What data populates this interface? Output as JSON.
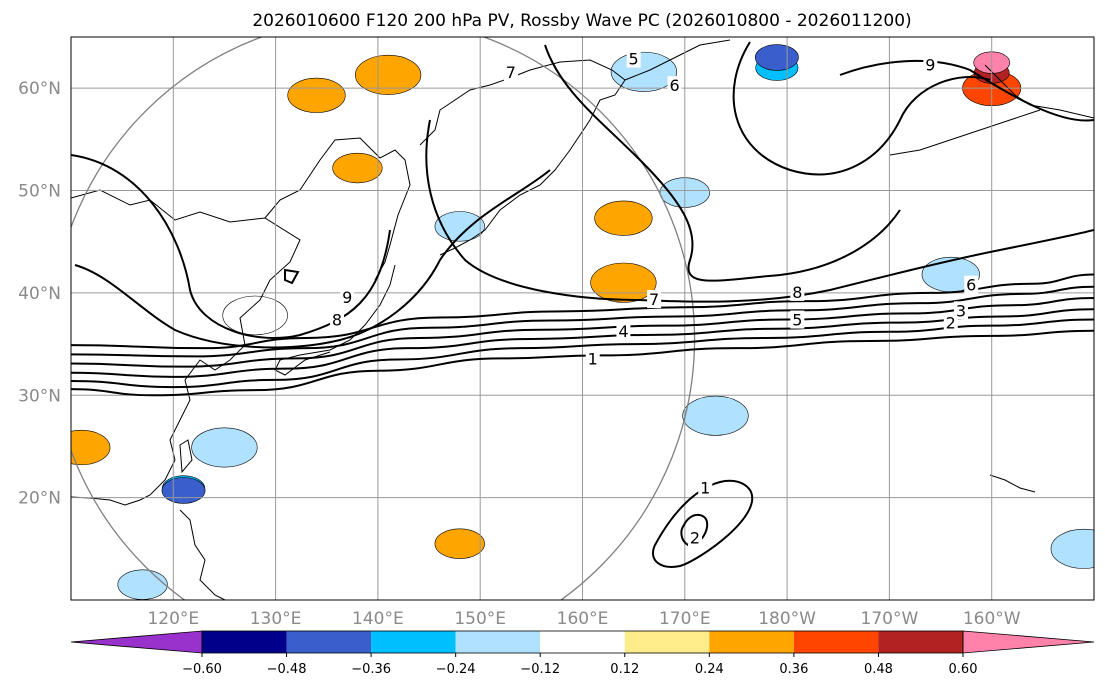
{
  "chart_data": {
    "type": "contour map",
    "title": "2026010600 F120 200 hPa PV, Rossby Wave PC (2026010800 - 2026011200)",
    "map_extent": {
      "lon_min": 110,
      "lon_max": 210,
      "lat_min": 10,
      "lat_max": 65
    },
    "x_ticks": [
      {
        "lon": 120,
        "label": "120°E"
      },
      {
        "lon": 130,
        "label": "130°E"
      },
      {
        "lon": 140,
        "label": "140°E"
      },
      {
        "lon": 150,
        "label": "150°E"
      },
      {
        "lon": 160,
        "label": "160°E"
      },
      {
        "lon": 170,
        "label": "170°E"
      },
      {
        "lon": 180,
        "label": "180°W"
      },
      {
        "lon": 190,
        "label": "170°W"
      },
      {
        "lon": 200,
        "label": "160°W"
      }
    ],
    "y_ticks": [
      {
        "lat": 20,
        "label": "20°N"
      },
      {
        "lat": 30,
        "label": "30°N"
      },
      {
        "lat": 40,
        "label": "40°N"
      },
      {
        "lat": 50,
        "label": "50°N"
      },
      {
        "lat": 60,
        "label": "60°N"
      }
    ],
    "grid": true,
    "reference_circle": {
      "center_lon": 139.5,
      "center_lat": 35.5,
      "color": "#808080"
    },
    "pv_contours": [
      {
        "level": 1,
        "points": [
          [
            110,
            30.6
          ],
          [
            118,
            30.0
          ],
          [
            128,
            30.5
          ],
          [
            140,
            32.4
          ],
          [
            152,
            33.6
          ],
          [
            162,
            33.9
          ],
          [
            175,
            34.6
          ],
          [
            188,
            35.3
          ],
          [
            200,
            35.8
          ],
          [
            210,
            36.3
          ]
        ]
      },
      {
        "level": 2,
        "points": [
          [
            110,
            31.4
          ],
          [
            120,
            30.8
          ],
          [
            130,
            31.5
          ],
          [
            142,
            33.5
          ],
          [
            154,
            34.6
          ],
          [
            165,
            35.0
          ],
          [
            178,
            35.6
          ],
          [
            190,
            36.2
          ],
          [
            200,
            36.8
          ],
          [
            210,
            37.4
          ]
        ]
      },
      {
        "level": 3,
        "points": [
          [
            110,
            32.2
          ],
          [
            120,
            31.8
          ],
          [
            131,
            32.6
          ],
          [
            143,
            34.6
          ],
          [
            155,
            35.5
          ],
          [
            167,
            35.9
          ],
          [
            179,
            36.5
          ],
          [
            191,
            37.1
          ],
          [
            201,
            37.7
          ],
          [
            210,
            38.4
          ]
        ]
      },
      {
        "level": 4,
        "points": [
          [
            110,
            33.1
          ],
          [
            121,
            32.8
          ],
          [
            132,
            33.6
          ],
          [
            144,
            35.6
          ],
          [
            156,
            36.4
          ],
          [
            168,
            36.8
          ],
          [
            180,
            37.4
          ],
          [
            192,
            38.0
          ],
          [
            202,
            38.8
          ],
          [
            210,
            39.5
          ]
        ]
      },
      {
        "level": 5,
        "points": [
          [
            110,
            34.0
          ],
          [
            122,
            33.8
          ],
          [
            133,
            34.6
          ],
          [
            145,
            36.6
          ],
          [
            157,
            37.3
          ],
          [
            169,
            37.7
          ],
          [
            181,
            38.3
          ],
          [
            193,
            39.0
          ],
          [
            203,
            39.9
          ],
          [
            210,
            40.6
          ]
        ]
      },
      {
        "level": 6,
        "points": [
          [
            110,
            34.9
          ],
          [
            123,
            34.6
          ],
          [
            133,
            35.6
          ],
          [
            146,
            37.6
          ],
          [
            158,
            38.2
          ],
          [
            170,
            38.6
          ],
          [
            182,
            39.2
          ],
          [
            194,
            40.0
          ],
          [
            204,
            40.9
          ],
          [
            210,
            41.8
          ]
        ]
      }
    ],
    "contour_labels": [
      {
        "text": "1",
        "lon": 161,
        "lat": 33.5
      },
      {
        "text": "2",
        "lon": 196,
        "lat": 37.0
      },
      {
        "text": "3",
        "lon": 197,
        "lat": 38.2
      },
      {
        "text": "4",
        "lon": 164,
        "lat": 36.2
      },
      {
        "text": "5",
        "lon": 181,
        "lat": 37.3
      },
      {
        "text": "6",
        "lon": 198,
        "lat": 40.7
      },
      {
        "text": "7",
        "lon": 167,
        "lat": 39.3
      },
      {
        "text": "8",
        "lon": 181,
        "lat": 40.0
      },
      {
        "text": "9",
        "lon": 137,
        "lat": 39.5
      },
      {
        "text": "8",
        "lon": 136,
        "lat": 37.3
      },
      {
        "text": "9",
        "lon": 194,
        "lat": 62.2
      },
      {
        "text": "5",
        "lon": 165,
        "lat": 62.8
      },
      {
        "text": "6",
        "lon": 169,
        "lat": 60.2
      },
      {
        "text": "7",
        "lon": 153,
        "lat": 61.5
      },
      {
        "text": "1",
        "lon": 172,
        "lat": 20.9
      },
      {
        "text": "2",
        "lon": 171,
        "lat": 16.0
      }
    ],
    "pc_shading_patches": [
      {
        "lon": 121,
        "lat": 20.9,
        "value": -0.36
      },
      {
        "lon": 121,
        "lat": 20.7,
        "value": -0.48
      },
      {
        "lon": 173,
        "lat": 28.0,
        "value": -0.24
      },
      {
        "lon": 170,
        "lat": 49.8,
        "value": -0.24
      },
      {
        "lon": 196,
        "lat": 41.8,
        "value": -0.24
      },
      {
        "lon": 209,
        "lat": 15.0,
        "value": -0.24
      },
      {
        "lon": 179,
        "lat": 62.0,
        "value": -0.36
      },
      {
        "lon": 179,
        "lat": 63.0,
        "value": -0.48
      },
      {
        "lon": 166,
        "lat": 61.6,
        "value": -0.24
      },
      {
        "lon": 148,
        "lat": 46.5,
        "value": -0.24
      },
      {
        "lon": 128,
        "lat": 37.8,
        "value": -0.12
      },
      {
        "lon": 125,
        "lat": 24.9,
        "value": -0.24
      },
      {
        "lon": 117,
        "lat": 11.5,
        "value": -0.24
      },
      {
        "lon": 134,
        "lat": 59.3,
        "value": 0.24
      },
      {
        "lon": 141,
        "lat": 61.3,
        "value": 0.24
      },
      {
        "lon": 138,
        "lat": 52.2,
        "value": 0.24
      },
      {
        "lon": 164,
        "lat": 47.3,
        "value": 0.24
      },
      {
        "lon": 164,
        "lat": 41.0,
        "value": 0.24
      },
      {
        "lon": 148,
        "lat": 15.5,
        "value": 0.24
      },
      {
        "lon": 111,
        "lat": 24.9,
        "value": 0.24
      },
      {
        "lon": 200,
        "lat": 60.0,
        "value": 0.36
      },
      {
        "lon": 200,
        "lat": 61.5,
        "value": 0.48
      },
      {
        "lon": 200,
        "lat": 62.5,
        "value": 0.6
      }
    ],
    "colorbar": {
      "colors": [
        "#9932CC",
        "#00008B",
        "#3A5FCD",
        "#00BFFF",
        "#B0E2FF",
        "#FFFFFF",
        "#FFEC8B",
        "#FFA500",
        "#FF4500",
        "#B22222",
        "#FF82AB"
      ],
      "boundaries": [
        -0.6,
        -0.48,
        -0.36,
        -0.24,
        -0.12,
        0.12,
        0.24,
        0.36,
        0.48,
        0.6
      ],
      "tick_labels": [
        "−0.60",
        "−0.48",
        "−0.36",
        "−0.24",
        "−0.12",
        "0.12",
        "0.24",
        "0.36",
        "0.48",
        "0.60"
      ],
      "extend": "both"
    }
  }
}
